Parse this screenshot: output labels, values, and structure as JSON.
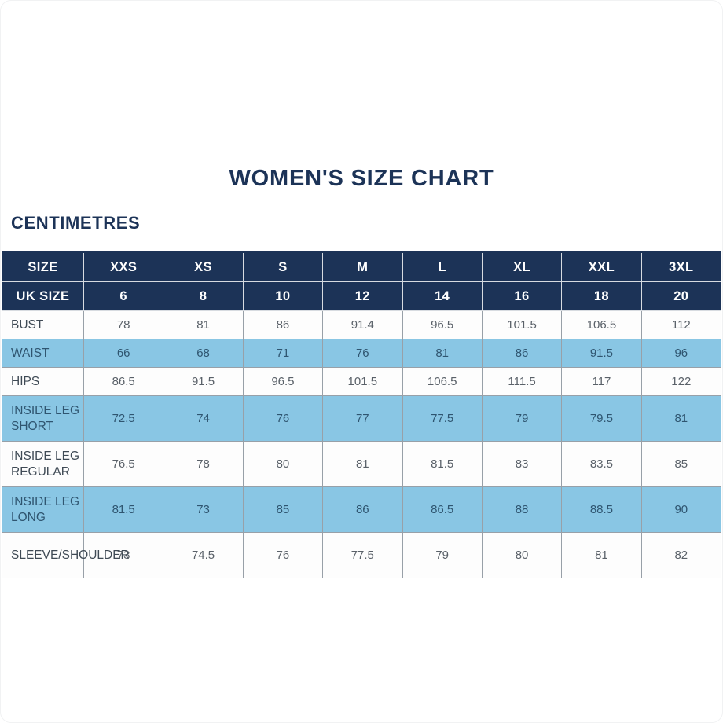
{
  "page": {
    "title": "WOMEN'S SIZE CHART",
    "unit_label": "CENTIMETRES"
  },
  "colors": {
    "header_bg": "#1c3357",
    "header_text": "#ffffff",
    "highlight_row_bg": "#89c6e4",
    "plain_row_bg": "#fdfdfd",
    "title_text": "#1c3357",
    "grid_line": "#98a0a8"
  },
  "chart_data": {
    "type": "table",
    "title": "WOMEN'S SIZE CHART",
    "unit": "CENTIMETRES",
    "header_rows": [
      {
        "label": "SIZE",
        "values": [
          "XXS",
          "XS",
          "S",
          "M",
          "L",
          "XL",
          "XXL",
          "3XL"
        ]
      },
      {
        "label": "UK SIZE",
        "values": [
          "6",
          "8",
          "10",
          "12",
          "14",
          "16",
          "18",
          "20"
        ]
      }
    ],
    "rows": [
      {
        "label": "BUST",
        "highlight": false,
        "values": [
          "78",
          "81",
          "86",
          "91.4",
          "96.5",
          "101.5",
          "106.5",
          "112"
        ]
      },
      {
        "label": "WAIST",
        "highlight": true,
        "values": [
          "66",
          "68",
          "71",
          "76",
          "81",
          "86",
          "91.5",
          "96"
        ]
      },
      {
        "label": "HIPS",
        "highlight": false,
        "values": [
          "86.5",
          "91.5",
          "96.5",
          "101.5",
          "106.5",
          "111.5",
          "117",
          "122"
        ]
      },
      {
        "label": "INSIDE LEG SHORT",
        "highlight": true,
        "values": [
          "72.5",
          "74",
          "76",
          "77",
          "77.5",
          "79",
          "79.5",
          "81"
        ]
      },
      {
        "label": "INSIDE LEG REGULAR",
        "highlight": false,
        "values": [
          "76.5",
          "78",
          "80",
          "81",
          "81.5",
          "83",
          "83.5",
          "85"
        ]
      },
      {
        "label": "INSIDE LEG LONG",
        "highlight": true,
        "values": [
          "81.5",
          "73",
          "85",
          "86",
          "86.5",
          "88",
          "88.5",
          "90"
        ]
      },
      {
        "label": "SLEEVE/SHOULDER",
        "highlight": false,
        "values": [
          "73",
          "74.5",
          "76",
          "77.5",
          "79",
          "80",
          "81",
          "82"
        ]
      }
    ]
  }
}
